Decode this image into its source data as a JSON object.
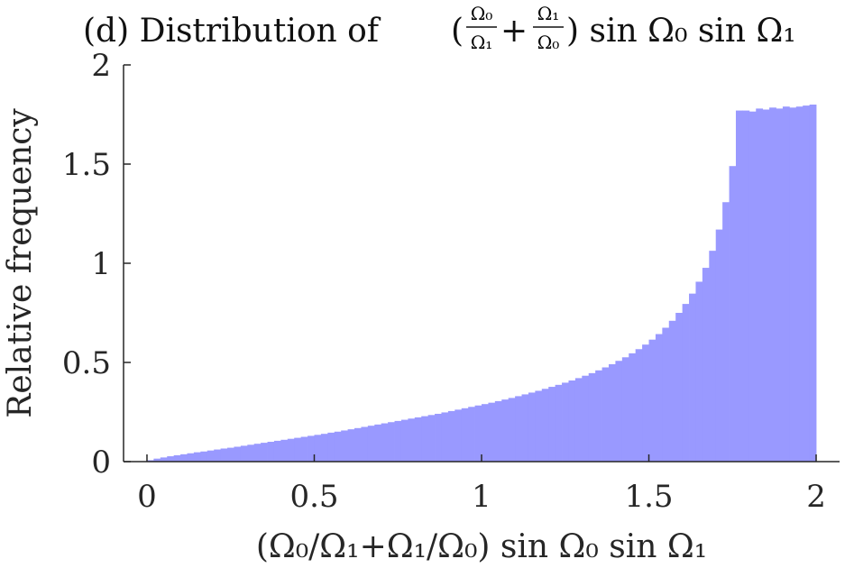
{
  "chart_data": {
    "type": "bar",
    "title_prefix": "(d) Distribution of",
    "title_math": {
      "frac1_num": "Ω₀",
      "frac1_den": "Ω₁",
      "plus": "+",
      "frac2_num": "Ω₁",
      "frac2_den": "Ω₀",
      "suffix": ") sin Ω₀ sin Ω₁",
      "open_paren": "("
    },
    "xlabel": "(Ω₀/Ω₁+Ω₁/Ω₀) sin Ω₀ sin Ω₁",
    "ylabel": "Relative frequency",
    "xlim": [
      -0.07,
      2.07
    ],
    "ylim": [
      0,
      2
    ],
    "xticks": [
      0,
      0.5,
      1,
      1.5,
      2
    ],
    "xtick_labels": [
      "0",
      "0.5",
      "1",
      "1.5",
      "2"
    ],
    "yticks": [
      0,
      0.5,
      1,
      1.5,
      2
    ],
    "ytick_labels": [
      "0",
      "0.5",
      "1",
      "1.5",
      "2"
    ],
    "bin_edges_start": 0,
    "bin_width": 0.02,
    "bar_color": "#9999ff",
    "values": [
      0.007,
      0.015,
      0.021,
      0.027,
      0.032,
      0.037,
      0.042,
      0.047,
      0.051,
      0.056,
      0.061,
      0.066,
      0.07,
      0.075,
      0.08,
      0.085,
      0.09,
      0.095,
      0.1,
      0.105,
      0.11,
      0.115,
      0.12,
      0.125,
      0.13,
      0.135,
      0.14,
      0.146,
      0.151,
      0.157,
      0.163,
      0.169,
      0.175,
      0.181,
      0.187,
      0.193,
      0.199,
      0.205,
      0.211,
      0.217,
      0.223,
      0.229,
      0.235,
      0.241,
      0.248,
      0.255,
      0.262,
      0.269,
      0.276,
      0.283,
      0.29,
      0.297,
      0.305,
      0.313,
      0.321,
      0.33,
      0.339,
      0.348,
      0.357,
      0.367,
      0.377,
      0.387,
      0.398,
      0.409,
      0.421,
      0.433,
      0.446,
      0.46,
      0.475,
      0.491,
      0.508,
      0.526,
      0.546,
      0.567,
      0.59,
      0.615,
      0.643,
      0.675,
      0.71,
      0.75,
      0.795,
      0.847,
      0.907,
      0.977,
      1.063,
      1.17,
      1.308,
      1.49,
      1.77,
      1.77,
      1.765,
      1.78,
      1.775,
      1.785,
      1.78,
      1.79,
      1.785,
      1.79,
      1.795,
      1.8
    ]
  }
}
